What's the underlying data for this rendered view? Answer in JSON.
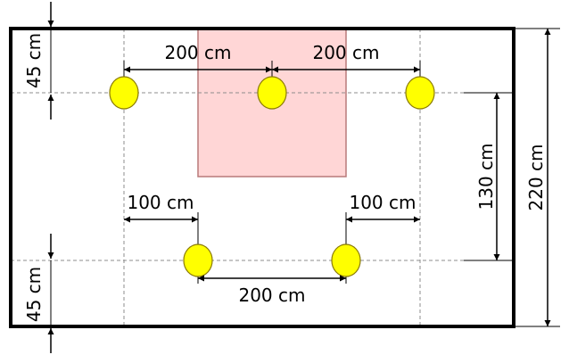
{
  "colors": {
    "outline": "#000000",
    "guide_line": "#8c8c8c",
    "highlight_fill": "#ffd6d6",
    "highlight_stroke": "#b87a7a",
    "light_fill": "#ffff00",
    "light_stroke": "#8a7a00"
  },
  "dimensions": {
    "top_left_offset": "45 cm",
    "bottom_left_offset": "45 cm",
    "top_span_left": "200 cm",
    "top_span_right": "200 cm",
    "bottom_offset_left": "100 cm",
    "bottom_offset_right": "100 cm",
    "bottom_span": "200 cm",
    "row_spacing": "130 cm",
    "total_depth": "220 cm"
  },
  "lights": {
    "top_row_count": 3,
    "bottom_row_count": 2
  }
}
